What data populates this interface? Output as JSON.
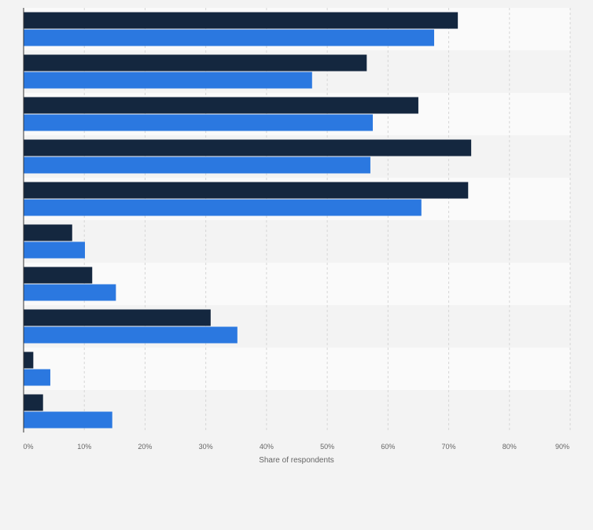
{
  "chart_data": {
    "type": "bar",
    "orientation": "horizontal",
    "categories": [
      "",
      "",
      "",
      "",
      "",
      "",
      "",
      "",
      "",
      ""
    ],
    "series": [
      {
        "values": [
          71.5,
          56.5,
          65,
          73.7,
          73.2,
          8,
          11.3,
          30.8,
          1.6,
          3.2
        ]
      },
      {
        "values": [
          67.6,
          47.5,
          57.5,
          57.1,
          65.5,
          10.1,
          15.2,
          35.2,
          4.4,
          14.6
        ]
      }
    ],
    "xlabel": "Share of respondents",
    "ylabel": "",
    "xlim": [
      0,
      90
    ],
    "xticks": [
      "0%",
      "10%",
      "20%",
      "30%",
      "40%",
      "50%",
      "60%",
      "70%",
      "80%",
      "90%"
    ],
    "grid": true,
    "legend": "none",
    "colors": {
      "series_0": "#14273f",
      "series_1": "#2b78e0",
      "band_light": "#fafafa",
      "band_dark": "#f3f3f3",
      "grid": "#d6d6d6",
      "axis": "#333333",
      "tick_text": "#666666"
    }
  }
}
